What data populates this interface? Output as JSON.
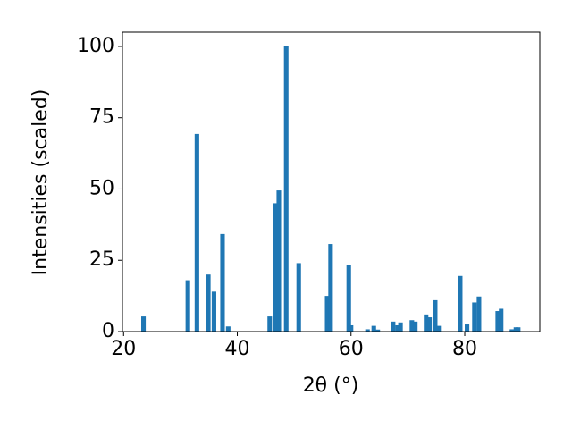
{
  "chart_data": {
    "type": "bar",
    "xlabel": "2θ (°)",
    "ylabel": "Intensities (scaled)",
    "x": [
      23.5,
      31.3,
      32.9,
      34.9,
      35.9,
      37.4,
      38.4,
      45.7,
      46.7,
      47.3,
      48.6,
      50.8,
      55.8,
      56.4,
      59.6,
      60.0,
      62.9,
      64.0,
      64.7,
      67.4,
      68.2,
      68.7,
      70.7,
      71.3,
      73.2,
      73.8,
      74.8,
      75.4,
      79.2,
      80.4,
      81.7,
      82.5,
      85.8,
      86.4,
      88.3,
      89.0,
      89.4
    ],
    "values": [
      5.3,
      18,
      69.3,
      20,
      14,
      34.2,
      1.8,
      5.3,
      45,
      49.5,
      100,
      24,
      12.5,
      30.7,
      23.5,
      2.2,
      0.8,
      2,
      0.7,
      3.5,
      2.2,
      3.2,
      4,
      3.5,
      6,
      5,
      11,
      2,
      19.5,
      2.5,
      10.2,
      12.3,
      7.2,
      8,
      0.8,
      1.5,
      1.5
    ],
    "color": "#1f77b4",
    "xlim": [
      19.8,
      93.2
    ],
    "xticks": [
      20,
      40,
      60,
      80
    ],
    "ylim": [
      0,
      105
    ],
    "yticks": [
      0,
      25,
      50,
      75,
      100
    ]
  }
}
